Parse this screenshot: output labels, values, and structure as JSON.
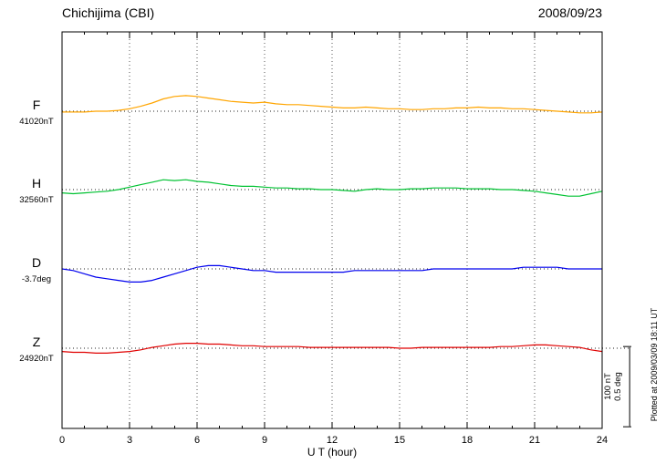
{
  "header": {
    "station": "Chichijima (CBI)",
    "date": "2008/09/23"
  },
  "axis": {
    "xlabel": "U T (hour)"
  },
  "scale_bar": {
    "nt": "100 nT",
    "deg": "0.5 deg"
  },
  "footer": {
    "plotted_at": "Plotted at 2009/03/09 18:11 UT"
  },
  "chart_data": {
    "type": "line",
    "title": "Chichijima (CBI) magnetogram 2008/09/23",
    "xlabel": "U T (hour)",
    "xlim": [
      0,
      24
    ],
    "x_ticks": [
      0,
      3,
      6,
      9,
      12,
      15,
      18,
      21,
      24
    ],
    "x_step_hours": 0.5,
    "grid": "dotted vertical lines every 3 hours; dotted horizontal baseline per component",
    "legend_position": "left labels per trace",
    "scale": "100 nT / 0.5 deg reference bar at lower right",
    "series": [
      {
        "name": "F",
        "color": "#FFA500",
        "baseline_label": "41020nT",
        "unit": "nT",
        "offsets": [
          -1,
          -1,
          -1,
          0,
          0,
          1,
          3,
          6,
          10,
          15,
          18,
          19,
          18,
          16,
          14,
          12,
          11,
          10,
          11,
          9,
          8,
          8,
          7,
          6,
          5,
          4,
          4,
          5,
          4,
          3,
          3,
          2,
          2,
          3,
          3,
          4,
          4,
          5,
          4,
          4,
          3,
          3,
          2,
          1,
          0,
          -1,
          -2,
          -2,
          -1
        ]
      },
      {
        "name": "H",
        "color": "#00C232",
        "baseline_label": "32560nT",
        "unit": "nT",
        "offsets": [
          -4,
          -5,
          -4,
          -3,
          -2,
          0,
          3,
          6,
          9,
          12,
          11,
          12,
          10,
          9,
          7,
          5,
          4,
          4,
          3,
          2,
          2,
          1,
          1,
          0,
          0,
          -1,
          -2,
          0,
          1,
          0,
          0,
          1,
          1,
          2,
          2,
          2,
          1,
          1,
          1,
          0,
          0,
          -1,
          -2,
          -4,
          -6,
          -8,
          -8,
          -5,
          -2
        ]
      },
      {
        "name": "D",
        "color": "#0000EE",
        "baseline_label": "-3.7deg",
        "unit": "deg",
        "offsets": [
          0,
          -0.01,
          -0.03,
          -0.05,
          -0.06,
          -0.07,
          -0.08,
          -0.08,
          -0.07,
          -0.05,
          -0.03,
          -0.01,
          0.01,
          0.02,
          0.02,
          0.01,
          0,
          -0.01,
          -0.01,
          -0.02,
          -0.02,
          -0.02,
          -0.02,
          -0.02,
          -0.02,
          -0.02,
          -0.01,
          -0.01,
          -0.01,
          -0.01,
          -0.01,
          -0.01,
          -0.01,
          0,
          0,
          0,
          0,
          0,
          0,
          0,
          0,
          0.01,
          0.01,
          0.01,
          0.01,
          0,
          0,
          0,
          0
        ]
      },
      {
        "name": "Z",
        "color": "#E00000",
        "baseline_label": "24920nT",
        "unit": "nT",
        "offsets": [
          -4,
          -5,
          -5,
          -6,
          -6,
          -5,
          -4,
          -2,
          1,
          3,
          5,
          6,
          6,
          5,
          5,
          4,
          3,
          3,
          2,
          2,
          2,
          2,
          1,
          1,
          1,
          1,
          1,
          1,
          1,
          1,
          0,
          0,
          1,
          1,
          1,
          1,
          1,
          1,
          1,
          2,
          2,
          3,
          4,
          4,
          3,
          2,
          1,
          -2,
          -4
        ]
      }
    ]
  }
}
